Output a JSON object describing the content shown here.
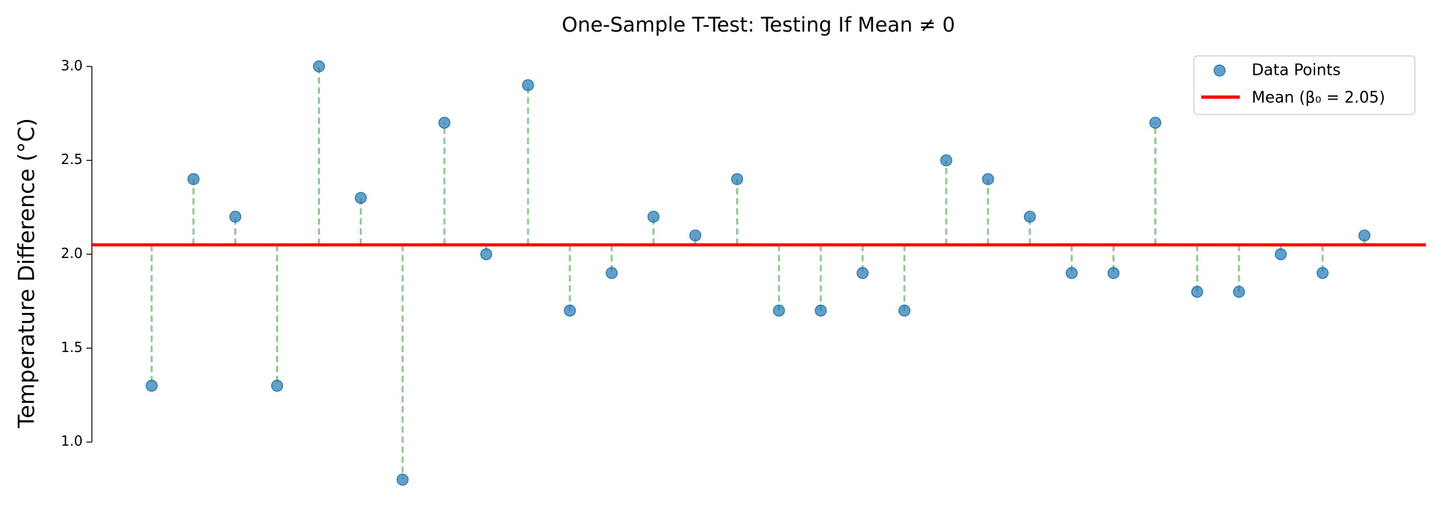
{
  "chart_data": {
    "type": "scatter",
    "title": "One-Sample T-Test: Testing If Mean ≠ 0",
    "y_label": "Temperature Difference (°C)",
    "series": [
      {
        "name": "Data Points",
        "color": "#1f77b4",
        "values": [
          1.3,
          2.4,
          2.2,
          1.3,
          3.0,
          2.3,
          0.8,
          2.7,
          2.0,
          2.9,
          1.7,
          1.9,
          2.2,
          2.1,
          2.4,
          1.7,
          1.7,
          1.9,
          1.7,
          2.5,
          2.4,
          2.2,
          1.9,
          1.9,
          2.7,
          1.8,
          1.8,
          2.0,
          1.9,
          2.1
        ]
      }
    ],
    "mean": {
      "name": "Mean (β₀ = 2.05)",
      "value": 2.05,
      "color": "#ff0000"
    },
    "stem_color": "#2ca02c",
    "ylim": [
      0.7,
      3.1
    ],
    "yticks": [
      {
        "value": 1.0,
        "label": "1.0"
      },
      {
        "value": 1.5,
        "label": "1.5"
      },
      {
        "value": 2.0,
        "label": "2.0"
      },
      {
        "value": 2.5,
        "label": "2.5"
      },
      {
        "value": 3.0,
        "label": "3.0"
      }
    ],
    "legend": "upper right"
  }
}
